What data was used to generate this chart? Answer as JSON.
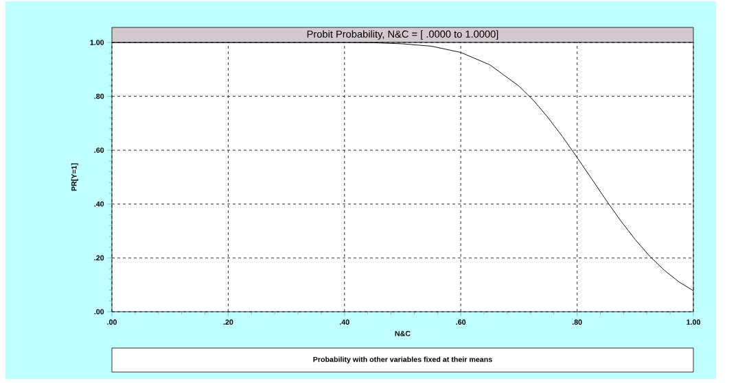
{
  "chart_data": {
    "type": "line",
    "title": "Probit Probability, N&C = [ .0000 to 1.0000]",
    "xlabel": "N&C",
    "ylabel": "PR[Y=1]",
    "annotations": [
      "Probability with other variables fixed at their means"
    ],
    "x": [
      0,
      0.1,
      0.2,
      0.3,
      0.4,
      0.45,
      0.5,
      0.55,
      0.6,
      0.65,
      0.7,
      0.725,
      0.75,
      0.775,
      0.8,
      0.825,
      0.85,
      0.875,
      0.9,
      0.925,
      0.95,
      0.975,
      1.0
    ],
    "series": [
      {
        "color": "#000000",
        "values": [
          1.0,
          1.0,
          1.0,
          1.0,
          1.0,
          0.999,
          0.995,
          0.986,
          0.963,
          0.917,
          0.838,
          0.785,
          0.721,
          0.65,
          0.573,
          0.494,
          0.414,
          0.338,
          0.268,
          0.206,
          0.154,
          0.111,
          0.078
        ]
      }
    ],
    "xlim": [
      0,
      1
    ],
    "ylim": [
      0,
      1
    ],
    "xticks": [
      {
        "value": 0,
        "label": ".00"
      },
      {
        "value": 0.2,
        "label": ".20"
      },
      {
        "value": 0.4,
        "label": ".40"
      },
      {
        "value": 0.6,
        "label": ".60"
      },
      {
        "value": 0.8,
        "label": ".80"
      },
      {
        "value": 1,
        "label": "1.00"
      }
    ],
    "yticks": [
      {
        "value": 0,
        "label": ".00"
      },
      {
        "value": 0.2,
        "label": ".20"
      },
      {
        "value": 0.4,
        "label": ".40"
      },
      {
        "value": 0.6,
        "label": ".60"
      },
      {
        "value": 0.8,
        "label": ".80"
      },
      {
        "value": 1,
        "label": "1.00"
      }
    ],
    "grid": true,
    "marker": "none",
    "line_style": "solid"
  }
}
